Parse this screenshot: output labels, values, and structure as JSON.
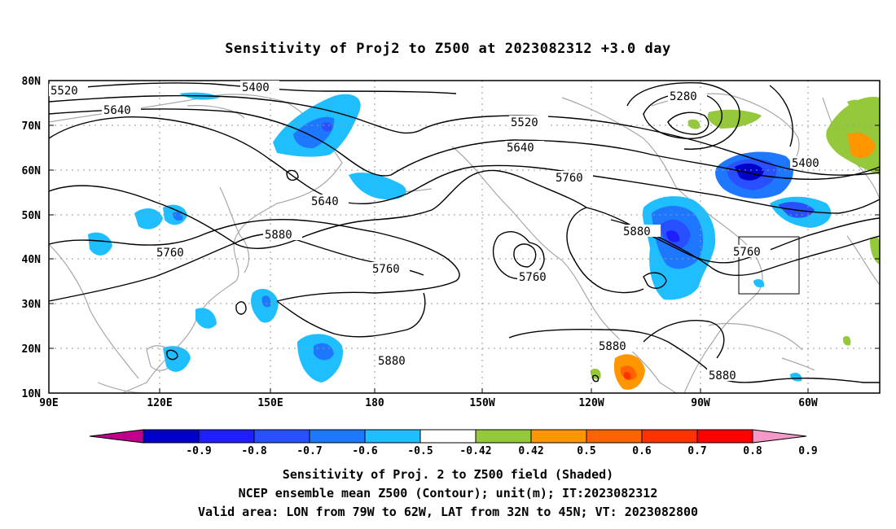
{
  "title": "Sensitivity of Proj2 to Z500 at 2023082312 +3.0 day",
  "footer": {
    "line1": "Sensitivity of Proj. 2 to Z500 field (Shaded)",
    "line2": "NCEP ensemble mean Z500 (Contour); unit(m); IT:2023082312",
    "line3": "Valid area: LON from 79W to 62W, LAT from 32N to 45N; VT: 2023082800"
  },
  "axes": {
    "lat_labels": [
      "80N",
      "70N",
      "60N",
      "50N",
      "40N",
      "30N",
      "20N",
      "10N"
    ],
    "lon_labels": [
      "90E",
      "120E",
      "150E",
      "180",
      "150W",
      "120W",
      "90W",
      "60W"
    ]
  },
  "colorbar": {
    "labels": [
      "-0.9",
      "-0.8",
      "-0.7",
      "-0.6",
      "-0.5",
      "-0.42",
      "0.42",
      "0.5",
      "0.6",
      "0.7",
      "0.8",
      "0.9"
    ],
    "colors": [
      "#c0008c",
      "#0000c8",
      "#1e1eff",
      "#2850ff",
      "#1e78ff",
      "#1ebeff",
      "#ffffff",
      "#96c83c",
      "#ff9600",
      "#ff6400",
      "#ff3200",
      "#ff0000",
      "#f59ac8"
    ]
  },
  "contour_labels": [
    {
      "id": "c5520a",
      "text": "5520"
    },
    {
      "id": "c5400a",
      "text": "5400"
    },
    {
      "id": "c5640a",
      "text": "5640"
    },
    {
      "id": "c5640b",
      "text": "5640"
    },
    {
      "id": "c5760a",
      "text": "5760"
    },
    {
      "id": "c5880a",
      "text": "5880"
    },
    {
      "id": "c5760b",
      "text": "5760"
    },
    {
      "id": "c5880b",
      "text": "5880"
    },
    {
      "id": "c5520b",
      "text": "5520"
    },
    {
      "id": "c5640c",
      "text": "5640"
    },
    {
      "id": "c5760c",
      "text": "5760"
    },
    {
      "id": "c5760d",
      "text": "5760"
    },
    {
      "id": "c5880c",
      "text": "5880"
    },
    {
      "id": "c5880d",
      "text": "5880"
    },
    {
      "id": "c5280a",
      "text": "5280"
    },
    {
      "id": "c5400b",
      "text": "5400"
    },
    {
      "id": "c5760e",
      "text": "5760"
    },
    {
      "id": "c5880e",
      "text": "5880"
    }
  ],
  "valid_area": {
    "lon_from": "79W",
    "lon_to": "62W",
    "lat_from": "32N",
    "lat_to": "45N"
  }
}
